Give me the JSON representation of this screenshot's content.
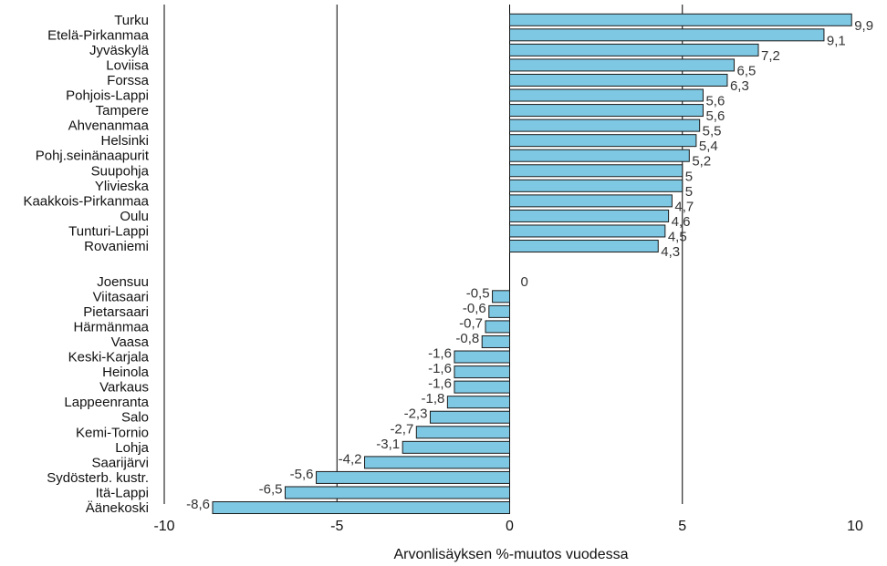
{
  "chart_data": {
    "type": "bar",
    "orientation": "horizontal",
    "xlabel": "Arvonlisäyksen %-muutos vuodessa",
    "xlim": [
      -10,
      10
    ],
    "xticks": [
      -10,
      -5,
      0,
      5,
      10
    ],
    "xtick_labels": [
      "-10",
      "-5",
      "0",
      "5",
      "10"
    ],
    "grid": "vertical lines at -5 and 5, left axis line at -10",
    "bar_color": "#7ec8e3",
    "bar_edge_color": "#1a1a1a",
    "groups": [
      {
        "categories": [
          "Turku",
          "Etelä-Pirkanmaa",
          "Jyväskylä",
          "Loviisa",
          "Forssa",
          "Pohjois-Lappi",
          "Tampere",
          "Ahvenanmaa",
          "Helsinki",
          "Pohj.seinänaapurit",
          "Suupohja",
          "Ylivieska",
          "Kaakkois-Pirkanmaa",
          "Oulu",
          "Tunturi-Lappi",
          "Rovaniemi"
        ],
        "values": [
          9.9,
          9.1,
          7.2,
          6.5,
          6.3,
          5.6,
          5.6,
          5.5,
          5.4,
          5.2,
          5,
          5,
          4.7,
          4.6,
          4.5,
          4.3
        ],
        "labels": [
          "9,9",
          "9,1",
          "7,2",
          "6,5",
          "6,3",
          "5,6",
          "5,6",
          "5,5",
          "5,4",
          "5,2",
          "5",
          "5",
          "4,7",
          "4,6",
          "4,5",
          "4,3"
        ]
      },
      {
        "categories": [
          "Joensuu",
          "Viitasaari",
          "Pietarsaari",
          "Härmänmaa",
          "Vaasa",
          "Keski-Karjala",
          "Heinola",
          "Varkaus",
          "Lappeenranta",
          "Salo",
          "Kemi-Tornio",
          "Lohja",
          "Saarijärvi",
          "Sydösterb. kustr.",
          "Itä-Lappi",
          "Äänekoski"
        ],
        "values": [
          0,
          -0.5,
          -0.6,
          -0.7,
          -0.8,
          -1.6,
          -1.6,
          -1.6,
          -1.8,
          -2.3,
          -2.7,
          -3.1,
          -4.2,
          -5.6,
          -6.5,
          -8.6
        ],
        "labels": [
          "0",
          "-0,5",
          "-0,6",
          "-0,7",
          "-0,8",
          "-1,6",
          "-1,6",
          "-1,6",
          "-1,8",
          "-2,3",
          "-2,7",
          "-3,1",
          "-4,2",
          "-5,6",
          "-6,5",
          "-8,6"
        ]
      }
    ]
  }
}
